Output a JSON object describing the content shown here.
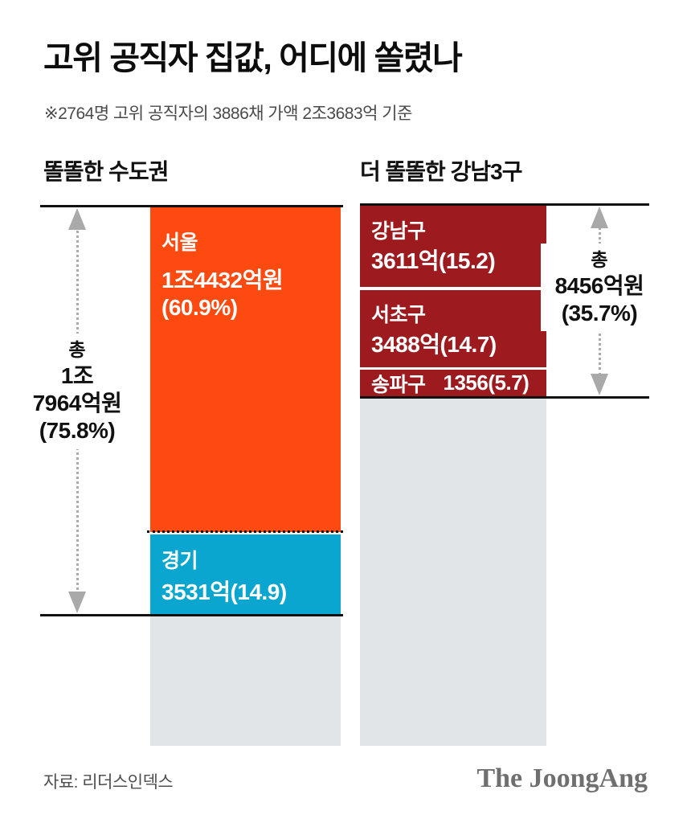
{
  "title": "고위 공직자 집값, 어디에 쏠렸나",
  "subtitle": "※2764명 고위 공직자의 3886채 가액 2조3683억 기준",
  "source": "자료: 리더스인덱스",
  "logo": "The JoongAng",
  "colors": {
    "seoul_orange": "#fc4a10",
    "gyeonggi_blue": "#0ba6cf",
    "gangnam_dark_red": "#9d1b1e",
    "remainder_gray": "#e1e5e7",
    "arrow_gray": "#a9a9a9",
    "line_black": "#111111"
  },
  "left_chart": {
    "header": "똘똘한 수도권",
    "total": {
      "prefix": "총",
      "line1": "1조",
      "line2": "7964억원",
      "line3": "(75.8%)"
    },
    "segments": {
      "seoul": {
        "name": "서울",
        "value_line1": "1조4432억원",
        "value_line2": "(60.9%)"
      },
      "gyeonggi": {
        "name": "경기",
        "value": "3531억(14.9)"
      }
    }
  },
  "right_chart": {
    "header": "더 똘똘한 강남3구",
    "total": {
      "prefix": "총",
      "line1": "8456억원",
      "line2": "(35.7%)"
    },
    "segments": {
      "gangnam": {
        "name": "강남구",
        "value": "3611억(15.2)"
      },
      "seocho": {
        "name": "서초구",
        "value": "3488억(14.7)"
      },
      "songpa": {
        "name": "송파구",
        "value": "1356(5.7)"
      }
    }
  },
  "chart_data": {
    "type": "bar",
    "title": "고위 공직자 집값, 어디에 쏠렸나",
    "note": "2764명 고위 공직자의 3886채 가액 2조3683억 기준",
    "unit": "억원",
    "grand_total_value": 23683,
    "legend_position": "none",
    "grid": false,
    "series": [
      {
        "name": "똘똘한 수도권",
        "total": {
          "label": "총 1조7964억원",
          "value": 17964,
          "pct": 75.8
        },
        "items": [
          {
            "label": "서울",
            "value": 14432,
            "pct": 60.9,
            "color": "#fc4a10"
          },
          {
            "label": "경기",
            "value": 3531,
            "pct": 14.9,
            "color": "#0ba6cf"
          }
        ]
      },
      {
        "name": "더 똘똘한 강남3구",
        "total": {
          "label": "총 8456억원",
          "value": 8456,
          "pct": 35.7
        },
        "items": [
          {
            "label": "강남구",
            "value": 3611,
            "pct": 15.2,
            "color": "#9d1b1e"
          },
          {
            "label": "서초구",
            "value": 3488,
            "pct": 14.7,
            "color": "#9d1b1e"
          },
          {
            "label": "송파구",
            "value": 1356,
            "pct": 5.7,
            "color": "#9d1b1e"
          }
        ]
      }
    ]
  }
}
